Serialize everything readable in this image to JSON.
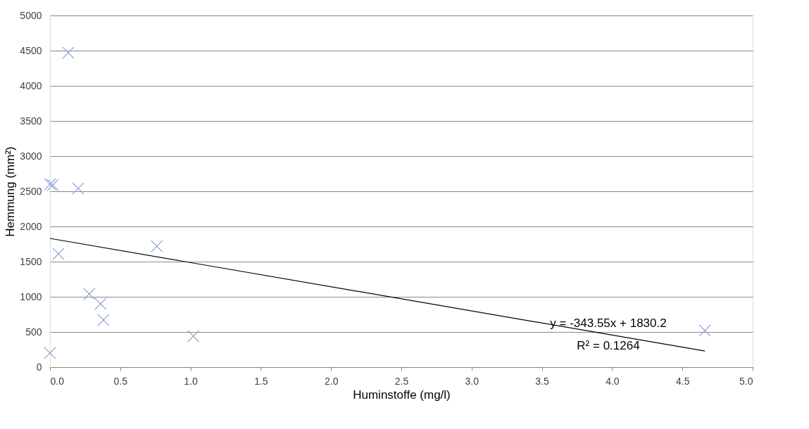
{
  "chart_data": {
    "type": "scatter",
    "xlabel": "Huminstoffe (mg/l)",
    "ylabel": "Hemmung (mm²)",
    "series": [
      {
        "color": "#7f9fd0",
        "marker": "cross",
        "x": [
          0.13,
          0.0,
          0.02,
          0.2,
          0.06,
          0.28,
          0.36,
          0.38,
          0.76,
          1.02,
          4.66,
          0.0
        ],
        "values": [
          4470,
          2600,
          2590,
          2540,
          1610,
          1040,
          900,
          670,
          1720,
          440,
          520,
          200
        ]
      },
      {
        "type": "line",
        "color": "#000000",
        "x": [
          0,
          4.66
        ],
        "values": [
          1830,
          229
        ]
      }
    ],
    "xlim": [
      0,
      5
    ],
    "ylim": [
      0,
      5000
    ],
    "xticks": [
      {
        "value": 0,
        "label": "0.0"
      },
      {
        "value": 0.5,
        "label": "0.5"
      },
      {
        "value": 1,
        "label": "1.0"
      },
      {
        "value": 1.5,
        "label": "1.5"
      },
      {
        "value": 2,
        "label": "2.0"
      },
      {
        "value": 2.5,
        "label": "2.5"
      },
      {
        "value": 3,
        "label": "3.0"
      },
      {
        "value": 3.5,
        "label": "3.5"
      },
      {
        "value": 4,
        "label": "4.0"
      },
      {
        "value": 4.5,
        "label": "4.5"
      },
      {
        "value": 5,
        "label": "5.0"
      }
    ],
    "yticks": [
      0,
      500,
      1000,
      1500,
      2000,
      2500,
      3000,
      3500,
      4000,
      4500,
      5000
    ],
    "grid": "y",
    "annotations": [
      "y = -343.55x + 1830.2",
      "R² = 0.1264"
    ]
  }
}
